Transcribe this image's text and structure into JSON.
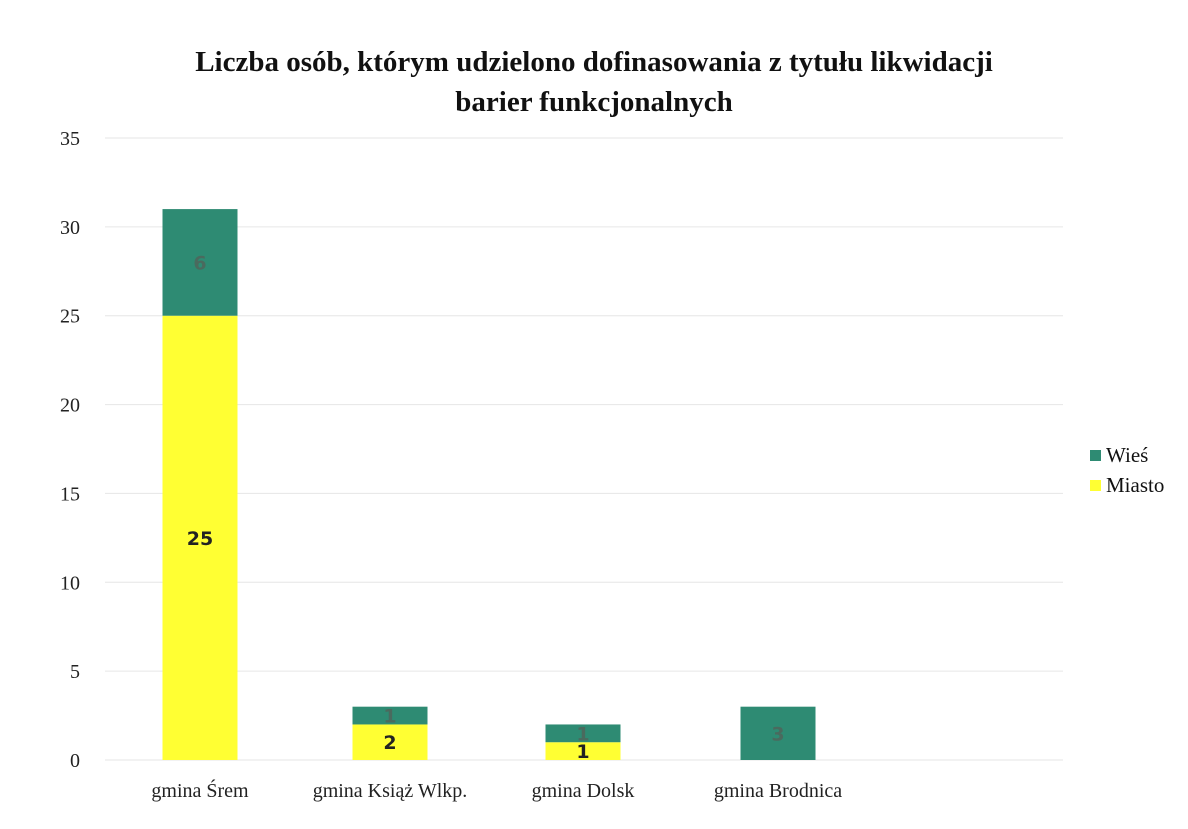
{
  "chart_data": {
    "type": "bar",
    "stacked": true,
    "title_lines": [
      "Liczba osób, którym udzielono dofinasowania z tytułu likwidacji",
      "barier funkcjonalnych"
    ],
    "categories": [
      "gmina Śrem",
      "gmina Książ Wlkp.",
      "gmina Dolsk",
      "gmina Brodnica"
    ],
    "series": [
      {
        "name": "Miasto",
        "values": [
          25,
          2,
          1,
          0
        ],
        "color": "#ffff33",
        "label_color": "#222222"
      },
      {
        "name": "Wieś",
        "values": [
          6,
          1,
          1,
          3
        ],
        "color": "#2e8b73",
        "label_color": "#4a6a5e"
      }
    ],
    "ylim": [
      0,
      35
    ],
    "yticks": [
      0,
      5,
      10,
      15,
      20,
      25,
      30,
      35
    ],
    "grid": true,
    "legend_position": "right",
    "legend_order": [
      "Wieś",
      "Miasto"
    ]
  }
}
